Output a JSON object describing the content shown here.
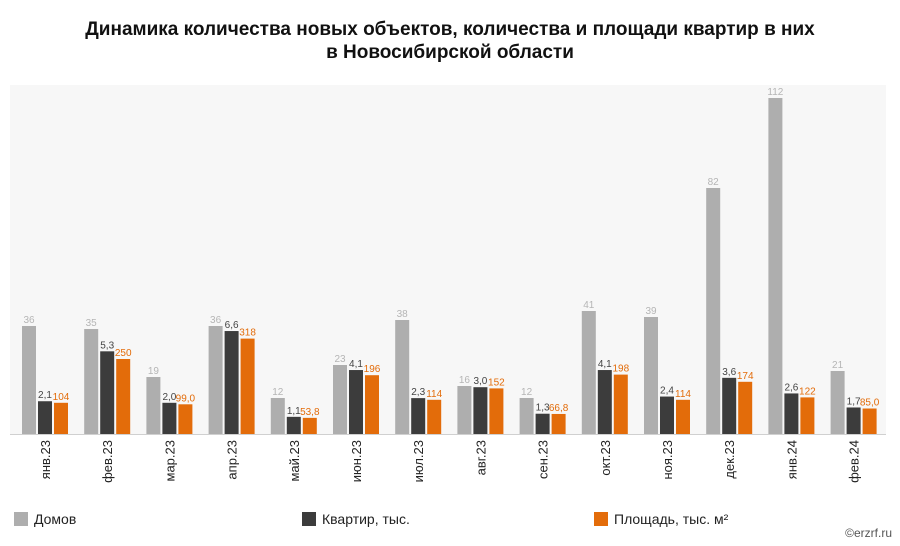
{
  "chart_data": {
    "type": "bar",
    "title": "Динамика количества новых объектов, количества и площади квартир в них в Новосибирской области",
    "title_lines": [
      "Динамика количества новых объектов, количества и площади квартир в них",
      "в Новосибирской области"
    ],
    "categories": [
      "янв.23",
      "фев.23",
      "мар.23",
      "апр.23",
      "май.23",
      "июн.23",
      "июл.23",
      "авг.23",
      "сен.23",
      "окт.23",
      "ноя.23",
      "дек.23",
      "янв.24",
      "фев.24"
    ],
    "series": [
      {
        "name": "Домов",
        "color": "#aeaeae",
        "label_color": "#b5b5b5",
        "values": [
          36,
          35,
          19,
          36,
          12,
          23,
          38,
          16,
          12,
          41,
          39,
          82,
          112,
          21
        ],
        "labels": [
          "36",
          "35",
          "19",
          "36",
          "12",
          "23",
          "38",
          "16",
          "12",
          "41",
          "39",
          "82",
          "112",
          "21"
        ]
      },
      {
        "name": "Квартир, тыс.",
        "color": "#3c3c3c",
        "label_color": "#444444",
        "values": [
          2.1,
          5.3,
          2.0,
          6.6,
          1.1,
          4.1,
          2.3,
          3.0,
          1.3,
          4.1,
          2.4,
          3.6,
          2.6,
          1.7
        ],
        "labels": [
          "2,1",
          "5,3",
          "2,0",
          "6,6",
          "1,1",
          "4,1",
          "2,3",
          "3,0",
          "1,3",
          "4,1",
          "2,4",
          "3,6",
          "2,6",
          "1,7"
        ]
      },
      {
        "name": "Площадь, тыс. м²",
        "color": "#e36c0a",
        "label_color": "#e36c0a",
        "values": [
          104,
          250,
          99.0,
          318,
          53.8,
          196,
          114,
          152,
          66.8,
          198,
          114,
          174,
          122,
          85.0
        ],
        "labels": [
          "104",
          "250",
          "99,0",
          "318",
          "53,8",
          "196",
          "114",
          "152",
          "66,8",
          "198",
          "114",
          "174",
          "122",
          "85,0"
        ]
      }
    ],
    "grid": false,
    "legend_position": "bottom"
  },
  "watermark": "©erzrf.ru"
}
